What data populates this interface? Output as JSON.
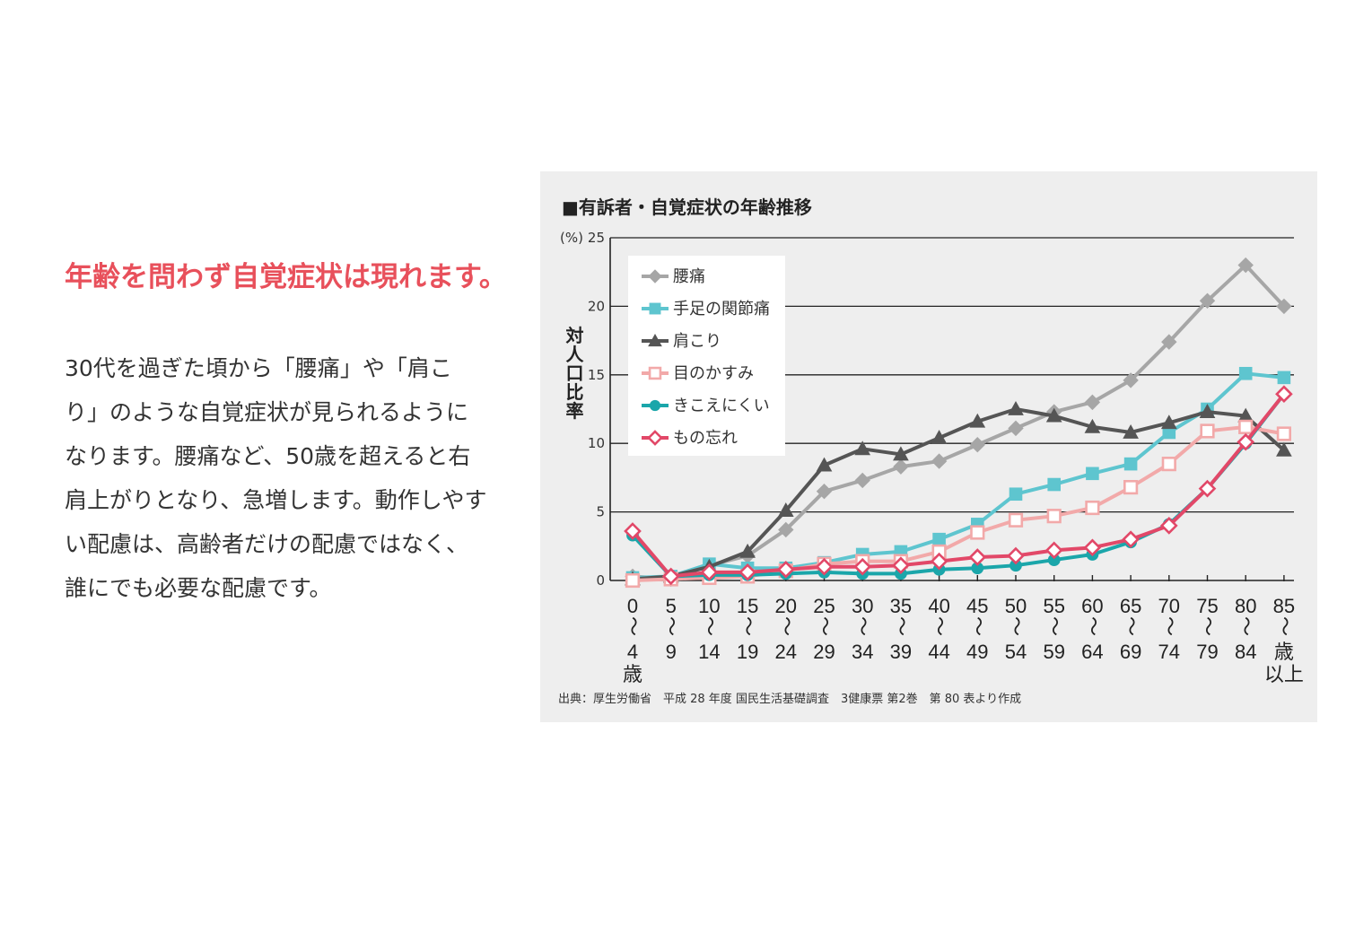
{
  "headline": "年齢を問わず自覚症状は現れます。",
  "body_lines": [
    "30代を過ぎた頃から「腰痛」や「肩こ",
    "り」のような自覚症状が見られるように",
    "なります。腰痛など、50歳を超えると右",
    "肩上がりとなり、急増します。動作しやす",
    "い配慮は、高齢者だけの配慮ではなく、",
    "誰にでも必要な配慮です。"
  ],
  "colors": {
    "headline": "#e8505b",
    "panel_bg": "#eeeeee",
    "series": [
      "#a6a6a6",
      "#5ec5cf",
      "#555555",
      "#f2a9a9",
      "#1ba6aa",
      "#e24868"
    ]
  },
  "chart_data": {
    "type": "line",
    "title": "■有訴者・自覚症状の年齢推移",
    "y_unit": "(%)",
    "ylabel": "対人口比率",
    "ylim": [
      0,
      25
    ],
    "yticks": [
      0,
      5,
      10,
      15,
      20,
      25
    ],
    "grid": true,
    "legend_position": "top-left",
    "source": "出典：厚生労働省　平成 28 年度 国民生活基礎調査　3健康票 第2巻　第 80 表より作成",
    "categories": [
      "0〜4歳",
      "5〜9",
      "10〜14",
      "15〜19",
      "20〜24",
      "25〜29",
      "30〜34",
      "35〜39",
      "40〜44",
      "45〜49",
      "50〜54",
      "55〜59",
      "60〜64",
      "65〜69",
      "70〜74",
      "75〜79",
      "80〜84",
      "85歳以上"
    ],
    "x_tick_top": [
      "0",
      "5",
      "10",
      "15",
      "20",
      "25",
      "30",
      "35",
      "40",
      "45",
      "50",
      "55",
      "60",
      "65",
      "70",
      "75",
      "80",
      "85"
    ],
    "x_tick_bottom": [
      "4",
      "9",
      "14",
      "19",
      "24",
      "29",
      "34",
      "39",
      "44",
      "49",
      "54",
      "59",
      "64",
      "69",
      "74",
      "79",
      "84",
      "歳"
    ],
    "x_tick_suffix": "歳",
    "x_tick_last_extra": "以上",
    "series": [
      {
        "name": "腰痛",
        "marker": "diamond",
        "values": [
          0.3,
          0.1,
          1.1,
          1.8,
          3.7,
          6.5,
          7.3,
          8.3,
          8.7,
          9.9,
          11.1,
          12.3,
          13.0,
          14.6,
          17.4,
          20.4,
          23.0,
          20.0
        ]
      },
      {
        "name": "手足の関節痛",
        "marker": "square",
        "values": [
          0.2,
          0.3,
          1.2,
          0.9,
          0.9,
          1.3,
          1.9,
          2.1,
          3.0,
          4.1,
          6.3,
          7.0,
          7.8,
          8.5,
          10.8,
          12.5,
          15.1,
          14.8
        ]
      },
      {
        "name": "肩こり",
        "marker": "triangle",
        "values": [
          0.1,
          0.3,
          1.0,
          2.1,
          5.1,
          8.4,
          9.6,
          9.2,
          10.4,
          11.6,
          12.5,
          12.0,
          11.2,
          10.8,
          11.5,
          12.3,
          12.0,
          9.5
        ]
      },
      {
        "name": "目のかすみ",
        "marker": "open-square",
        "values": [
          0.0,
          0.1,
          0.2,
          0.3,
          0.7,
          1.2,
          1.4,
          1.4,
          2.1,
          3.5,
          4.4,
          4.7,
          5.3,
          6.8,
          8.5,
          10.9,
          11.2,
          10.7
        ]
      },
      {
        "name": "きこえにくい",
        "marker": "circle",
        "values": [
          3.3,
          0.3,
          0.4,
          0.4,
          0.5,
          0.6,
          0.5,
          0.5,
          0.8,
          0.9,
          1.1,
          1.5,
          1.9,
          2.8,
          4.1,
          6.7,
          10.0,
          13.6
        ]
      },
      {
        "name": "もの忘れ",
        "marker": "open-diamond",
        "values": [
          3.6,
          0.3,
          0.6,
          0.6,
          0.8,
          1.0,
          1.0,
          1.1,
          1.4,
          1.7,
          1.8,
          2.2,
          2.4,
          3.0,
          4.0,
          6.7,
          10.1,
          13.6
        ]
      }
    ]
  }
}
